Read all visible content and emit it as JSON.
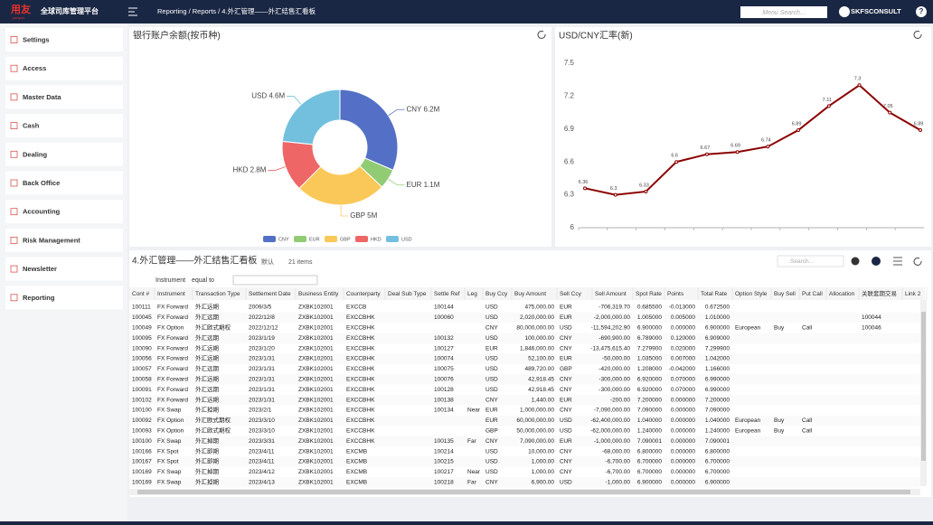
{
  "header": {
    "logo": "用友",
    "logo_sub": "yonyou",
    "app_title": "全球司库管理平台",
    "breadcrumb": "Reporting / Reports / 4.外汇管理——外汇结售汇看板",
    "search_placeholder": "Menu Search...",
    "user": "SKFSCONSULT",
    "help": "?"
  },
  "sidebar": {
    "items": [
      "Settings",
      "Access",
      "Master Data",
      "Cash",
      "Dealing",
      "Back Office",
      "Accounting",
      "Risk Management",
      "Newsletter",
      "Reporting"
    ]
  },
  "chart_data": [
    {
      "type": "pie",
      "title": "银行账户余额(按币种)",
      "categories": [
        "CNY",
        "EUR",
        "GBP",
        "HKD",
        "USD"
      ],
      "values": [
        6.2,
        1.1,
        5,
        2.8,
        4.6
      ],
      "value_labels": [
        "CNY 6.2M",
        "EUR 1.1M",
        "GBP 5M",
        "HKD 2.8M",
        "USD 4.6M"
      ],
      "colors": [
        "#5470c6",
        "#91cc75",
        "#fac858",
        "#ee6666",
        "#73c0de"
      ],
      "legend": "bottom"
    },
    {
      "type": "line",
      "title": "USD/CNY汇率(新)",
      "categories": [
        null,
        null,
        null,
        null,
        null,
        null,
        null,
        null,
        null,
        null,
        null,
        null
      ],
      "values": [
        6.36,
        6.3,
        6.33,
        6.6,
        6.67,
        6.69,
        6.74,
        6.89,
        7.11,
        7.3,
        7.05,
        6.89
      ],
      "color": "#8b0000",
      "ylim": [
        6,
        7.5
      ],
      "yticks": [
        6,
        6.3,
        6.6,
        6.9,
        7.2,
        7.5
      ],
      "grid": false
    }
  ],
  "report": {
    "title": "4.外汇管理——外汇结售汇看板",
    "view": "默认",
    "count": "21 items",
    "search_placeholder": "Search...",
    "filter_field": "Instrument",
    "filter_op": "equal to",
    "columns": [
      "Cont #",
      "Instrument",
      "Transaction Type",
      "Settlement Date",
      "Business Entity",
      "Counterparty",
      "Deal Sub Type",
      "Settle Ref",
      "Leg",
      "Buy Ccy",
      "Buy Amount",
      "Sell Ccy",
      "Sell Amount",
      "Spot Rate",
      "Points",
      "Total Rate",
      "Option Style",
      "Buy Sell",
      "Put Call",
      "Allocation",
      "关联套期交易",
      "Link 2"
    ],
    "rows": [
      [
        "100111",
        "FX Forward",
        "外汇远期",
        "2009/3/5",
        "ZXBK102001",
        "EXCCB",
        null,
        "100144",
        null,
        "USD",
        "475,000.00",
        "EUR",
        "-706,319.70",
        "0.685500",
        "-0.013000",
        "0.672500",
        null,
        null,
        null,
        null,
        null,
        null
      ],
      [
        "100045",
        "FX Forward",
        "外汇远期",
        "2022/12/8",
        "ZXBK102001",
        "EXCCBHK",
        null,
        "100060",
        null,
        "USD",
        "2,020,000.00",
        "EUR",
        "-2,000,000.00",
        "1.005000",
        "0.005000",
        "1.010000",
        null,
        null,
        null,
        null,
        "100044",
        null
      ],
      [
        "100049",
        "FX Option",
        "外汇欧式期权",
        "2022/12/12",
        "ZXBK102001",
        "EXCCBHK",
        null,
        null,
        null,
        "CNY",
        "80,000,000.00",
        "USD",
        "-11,594,202.90",
        "6.900000",
        "0.000000",
        "6.900000",
        "European",
        "Buy",
        "Call",
        null,
        "100046",
        null
      ],
      [
        "100095",
        "FX Forward",
        "外汇远期",
        "2023/1/19",
        "ZXBK102001",
        "EXCCBHK",
        null,
        "100132",
        null,
        "USD",
        "100,000.00",
        "CNY",
        "-690,900.00",
        "6.789000",
        "0.120000",
        "6.909000",
        null,
        null,
        null,
        null,
        null,
        null
      ],
      [
        "100090",
        "FX Forward",
        "外汇远期",
        "2023/1/20",
        "ZXBK102001",
        "EXCCBHK",
        null,
        "100127",
        null,
        "EUR",
        "1,846,000.00",
        "CNY",
        "-13,475,615.40",
        "7.279900",
        "0.020000",
        "7.299900",
        null,
        null,
        null,
        null,
        null,
        null
      ],
      [
        "100056",
        "FX Forward",
        "外汇远期",
        "2023/1/31",
        "ZXBK102001",
        "EXCCBHK",
        null,
        "100074",
        null,
        "USD",
        "52,100.00",
        "EUR",
        "-50,000.00",
        "1.035000",
        "0.007000",
        "1.042000",
        null,
        null,
        null,
        null,
        null,
        null
      ],
      [
        "100057",
        "FX Forward",
        "外汇远期",
        "2023/1/31",
        "ZXBK102001",
        "EXCCBHK",
        null,
        "100075",
        null,
        "USD",
        "489,720.00",
        "GBP",
        "-420,000.00",
        "1.208000",
        "-0.042000",
        "1.166000",
        null,
        null,
        null,
        null,
        null,
        null
      ],
      [
        "100058",
        "FX Forward",
        "外汇远期",
        "2023/1/31",
        "ZXBK102001",
        "EXCCBHK",
        null,
        "100076",
        null,
        "USD",
        "42,918.45",
        "CNY",
        "-300,000.00",
        "6.920000",
        "0.070000",
        "6.990000",
        null,
        null,
        null,
        null,
        null,
        null
      ],
      [
        "100091",
        "FX Forward",
        "外汇远期",
        "2023/1/31",
        "ZXBK102001",
        "EXCCBHK",
        null,
        "100128",
        null,
        "USD",
        "42,918.45",
        "CNY",
        "-300,000.00",
        "6.920000",
        "0.070000",
        "6.990000",
        null,
        null,
        null,
        null,
        null,
        null
      ],
      [
        "100102",
        "FX Forward",
        "外汇远期",
        "2023/1/31",
        "ZXBK102001",
        "EXCCBHK",
        null,
        "100138",
        null,
        "CNY",
        "1,440.00",
        "EUR",
        "-200.00",
        "7.200000",
        "0.000000",
        "7.200000",
        null,
        null,
        null,
        null,
        null,
        null
      ],
      [
        "100100",
        "FX Swap",
        "外汇掉期",
        "2023/2/1",
        "ZXBK102001",
        "EXCCBHK",
        null,
        "100134",
        "Near",
        "EUR",
        "1,000,000.00",
        "CNY",
        "-7,090,000.00",
        "7.090000",
        "0.000000",
        "7.090000",
        null,
        null,
        null,
        null,
        null,
        null
      ],
      [
        "100092",
        "FX Option",
        "外汇欧式期权",
        "2023/3/10",
        "ZXBK102001",
        "EXCCBHK",
        null,
        null,
        null,
        "EUR",
        "60,000,000.00",
        "USD",
        "-62,400,000.00",
        "1.040000",
        "0.000000",
        "1.040000",
        "European",
        "Buy",
        "Call",
        null,
        null,
        null
      ],
      [
        "100093",
        "FX Option",
        "外汇欧式期权",
        "2023/3/10",
        "ZXBK102001",
        "EXCCBHK",
        null,
        null,
        null,
        "GBP",
        "50,000,000.00",
        "USD",
        "-62,000,000.00",
        "1.240000",
        "0.000000",
        "1.240000",
        "European",
        "Buy",
        "Call",
        null,
        null,
        null
      ],
      [
        "100100",
        "FX Swap",
        "外汇掉期",
        "2023/3/31",
        "ZXBK102001",
        "EXCCBHK",
        null,
        "100135",
        "Far",
        "CNY",
        "7,090,000.00",
        "EUR",
        "-1,000,000.00",
        "7.090001",
        "0.000000",
        "7.090001",
        null,
        null,
        null,
        null,
        null,
        null
      ],
      [
        "100166",
        "FX Spot",
        "外汇即期",
        "2023/4/11",
        "ZXBK102001",
        "EXCMB",
        null,
        "100214",
        null,
        "USD",
        "10,000.00",
        "CNY",
        "-68,000.00",
        "6.800000",
        "0.000000",
        "6.800000",
        null,
        null,
        null,
        null,
        null,
        null
      ],
      [
        "100167",
        "FX Spot",
        "外汇即期",
        "2023/4/11",
        "ZXBK102001",
        "EXCMB",
        null,
        "100215",
        null,
        "USD",
        "1,000.00",
        "CNY",
        "-6,700.00",
        "6.700000",
        "0.000000",
        "6.700000",
        null,
        null,
        null,
        null,
        null,
        null
      ],
      [
        "100169",
        "FX Swap",
        "外汇掉期",
        "2023/4/12",
        "ZXBK102001",
        "EXCMB",
        null,
        "100217",
        "Near",
        "USD",
        "1,000.00",
        "CNY",
        "-6,700.00",
        "6.700000",
        "0.000000",
        "6.700000",
        null,
        null,
        null,
        null,
        null,
        null
      ],
      [
        "100169",
        "FX Swap",
        "外汇掉期",
        "2023/4/13",
        "ZXBK102001",
        "EXCMB",
        null,
        "100218",
        "Far",
        "CNY",
        "6,900.00",
        "USD",
        "-1,000.00",
        "6.900000",
        "0.000000",
        "6.900000",
        null,
        null,
        null,
        null,
        null,
        null
      ]
    ]
  }
}
